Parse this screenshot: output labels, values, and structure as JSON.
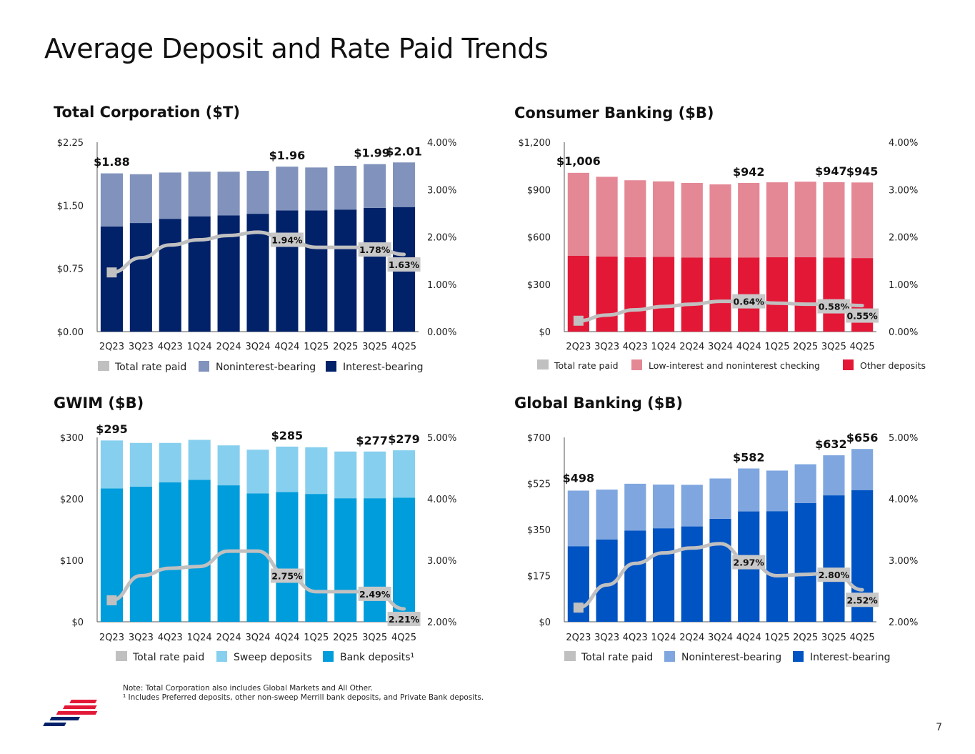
{
  "title": "Average Deposit and Rate Paid Trends",
  "page_number": "7",
  "notes": [
    "Note: Total Corporation also includes Global Markets and All Other.",
    "¹ Includes Preferred deposits, other non-sweep Merrill bank deposits, and Private Bank deposits."
  ],
  "colors": {
    "rate_line": "#c0c0c0",
    "total_nib": "#8193bc",
    "total_ib": "#012169",
    "consumer_top": "#e48895",
    "consumer_bottom": "#e31837",
    "gwim_top": "#86cfee",
    "gwim_bottom": "#009ddc",
    "global_top": "#7fa6df",
    "global_bottom": "#0053c2"
  },
  "chart_data": [
    {
      "id": "total",
      "type": "bar",
      "stacked": true,
      "title": "Total Corporation ($T)",
      "categories": [
        "2Q23",
        "3Q23",
        "4Q23",
        "1Q24",
        "2Q24",
        "3Q24",
        "4Q24",
        "1Q25",
        "2Q25",
        "3Q25",
        "4Q25"
      ],
      "y_left": {
        "min": 0,
        "max": 2.25,
        "ticks": [
          "$0.00",
          "$0.75",
          "$1.50",
          "$2.25"
        ]
      },
      "y_right": {
        "min": 0,
        "max": 4,
        "ticks": [
          "0.00%",
          "1.00%",
          "2.00%",
          "3.00%",
          "4.00%"
        ]
      },
      "series": [
        {
          "name": "Interest-bearing",
          "color_key": "total_ib",
          "values": [
            1.25,
            1.29,
            1.34,
            1.37,
            1.38,
            1.4,
            1.44,
            1.44,
            1.45,
            1.47,
            1.48
          ]
        },
        {
          "name": "Noninterest-bearing",
          "color_key": "total_nib",
          "values": [
            0.63,
            0.58,
            0.55,
            0.53,
            0.52,
            0.51,
            0.52,
            0.51,
            0.52,
            0.52,
            0.53
          ]
        }
      ],
      "rate": {
        "name": "Total rate paid",
        "values": [
          1.25,
          1.56,
          1.83,
          1.94,
          2.03,
          2.1,
          1.94,
          1.78,
          1.78,
          1.78,
          1.63
        ]
      },
      "value_labels": [
        {
          "index": 0,
          "text": "$1.88"
        },
        {
          "index": 6,
          "text": "$1.96"
        },
        {
          "index": 9,
          "text": "$1.99"
        },
        {
          "index": 10,
          "text": "$2.01"
        }
      ],
      "rate_labels": [
        {
          "index": 6,
          "text": "1.94%"
        },
        {
          "index": 9,
          "text": "1.78%"
        },
        {
          "index": 10,
          "text": "1.63%"
        }
      ],
      "legend": [
        "Total rate paid",
        "Noninterest-bearing",
        "Interest-bearing"
      ]
    },
    {
      "id": "consumer",
      "type": "bar",
      "stacked": true,
      "title": "Consumer Banking ($B)",
      "categories": [
        "2Q23",
        "3Q23",
        "4Q23",
        "1Q24",
        "2Q24",
        "3Q24",
        "4Q24",
        "1Q25",
        "2Q25",
        "3Q25",
        "4Q25"
      ],
      "y_left": {
        "min": 0,
        "max": 1200,
        "ticks": [
          "$0",
          "$300",
          "$600",
          "$900",
          "$1,200"
        ]
      },
      "y_right": {
        "min": 0,
        "max": 4,
        "ticks": [
          "0.00%",
          "1.00%",
          "2.00%",
          "3.00%",
          "4.00%"
        ]
      },
      "series": [
        {
          "name": "Other deposits",
          "color_key": "consumer_bottom",
          "values": [
            480,
            476,
            472,
            474,
            470,
            469,
            470,
            471,
            472,
            470,
            466
          ]
        },
        {
          "name": "Low-interest and noninterest checking",
          "color_key": "consumer_top",
          "values": [
            526,
            505,
            487,
            478,
            472,
            464,
            472,
            475,
            478,
            477,
            479
          ]
        }
      ],
      "rate": {
        "name": "Total rate paid",
        "values": [
          0.23,
          0.35,
          0.46,
          0.53,
          0.58,
          0.64,
          0.64,
          0.6,
          0.58,
          0.58,
          0.55
        ]
      },
      "value_labels": [
        {
          "index": 0,
          "text": "$1,006"
        },
        {
          "index": 6,
          "text": "$942"
        },
        {
          "index": 9,
          "text": "$947"
        },
        {
          "index": 10,
          "text": "$945"
        }
      ],
      "rate_labels": [
        {
          "index": 6,
          "text": "0.64%"
        },
        {
          "index": 9,
          "text": "0.58%"
        },
        {
          "index": 10,
          "text": "0.55%"
        }
      ],
      "legend": [
        "Total rate paid",
        "Low-interest and noninterest checking",
        "Other deposits"
      ]
    },
    {
      "id": "gwim",
      "type": "bar",
      "stacked": true,
      "title": "GWIM ($B)",
      "categories": [
        "2Q23",
        "3Q23",
        "4Q23",
        "1Q24",
        "2Q24",
        "3Q24",
        "4Q24",
        "1Q25",
        "2Q25",
        "3Q25",
        "4Q25"
      ],
      "y_left": {
        "min": 0,
        "max": 300,
        "ticks": [
          "$0",
          "$100",
          "$200",
          "$300"
        ]
      },
      "y_right": {
        "min": 2,
        "max": 5,
        "ticks": [
          "2.00%",
          "3.00%",
          "4.00%",
          "5.00%"
        ]
      },
      "series": [
        {
          "name": "Bank deposits¹",
          "color_key": "gwim_bottom",
          "values": [
            217,
            220,
            227,
            231,
            222,
            209,
            211,
            208,
            201,
            201,
            202
          ]
        },
        {
          "name": "Sweep deposits",
          "color_key": "gwim_top",
          "values": [
            78,
            71,
            64,
            65,
            65,
            71,
            74,
            76,
            76,
            76,
            77
          ]
        }
      ],
      "rate": {
        "name": "Total rate paid",
        "values": [
          2.35,
          2.75,
          2.87,
          2.9,
          3.15,
          3.15,
          2.75,
          2.49,
          2.49,
          2.49,
          2.21
        ]
      },
      "value_labels": [
        {
          "index": 0,
          "text": "$295"
        },
        {
          "index": 6,
          "text": "$285"
        },
        {
          "index": 9,
          "text": "$277"
        },
        {
          "index": 10,
          "text": "$279"
        }
      ],
      "rate_labels": [
        {
          "index": 6,
          "text": "2.75%"
        },
        {
          "index": 9,
          "text": "2.49%"
        },
        {
          "index": 10,
          "text": "2.21%"
        }
      ],
      "legend": [
        "Total rate paid",
        "Sweep deposits",
        "Bank deposits¹"
      ]
    },
    {
      "id": "global",
      "type": "bar",
      "stacked": true,
      "title": "Global Banking ($B)",
      "categories": [
        "2Q23",
        "3Q23",
        "4Q23",
        "1Q24",
        "2Q24",
        "3Q24",
        "4Q24",
        "1Q25",
        "2Q25",
        "3Q25",
        "4Q25"
      ],
      "y_left": {
        "min": 0,
        "max": 700,
        "ticks": [
          "$0",
          "$175",
          "$350",
          "$525",
          "$700"
        ]
      },
      "y_right": {
        "min": 2,
        "max": 5,
        "ticks": [
          "2.00%",
          "3.00%",
          "4.00%",
          "5.00%"
        ]
      },
      "series": [
        {
          "name": "Interest-bearing",
          "color_key": "global_bottom",
          "values": [
            287,
            312,
            346,
            355,
            362,
            391,
            419,
            420,
            451,
            480,
            500
          ]
        },
        {
          "name": "Noninterest-bearing",
          "color_key": "global_top",
          "values": [
            211,
            190,
            178,
            166,
            158,
            153,
            163,
            154,
            147,
            152,
            156
          ]
        }
      ],
      "rate": {
        "name": "Total rate paid",
        "values": [
          2.23,
          2.6,
          2.95,
          3.12,
          3.2,
          3.27,
          2.97,
          2.75,
          2.77,
          2.8,
          2.52
        ]
      },
      "value_labels": [
        {
          "index": 0,
          "text": "$498"
        },
        {
          "index": 6,
          "text": "$582"
        },
        {
          "index": 9,
          "text": "$632"
        },
        {
          "index": 10,
          "text": "$656"
        }
      ],
      "rate_labels": [
        {
          "index": 6,
          "text": "2.97%"
        },
        {
          "index": 9,
          "text": "2.80%"
        },
        {
          "index": 10,
          "text": "2.52%"
        }
      ],
      "legend": [
        "Total rate paid",
        "Noninterest-bearing",
        "Interest-bearing"
      ]
    }
  ]
}
